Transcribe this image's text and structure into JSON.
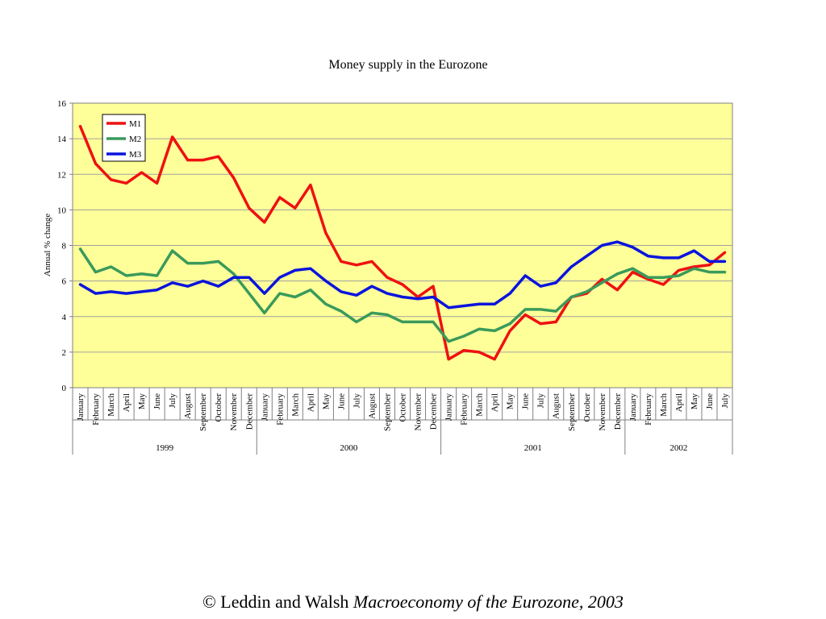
{
  "chart_data": {
    "type": "line",
    "title": "Money supply in the Eurozone",
    "ylabel": "Annual % change",
    "xlabel": "",
    "ylim": [
      0,
      16
    ],
    "yticks": [
      0,
      2,
      4,
      6,
      8,
      10,
      12,
      14,
      16
    ],
    "grid": true,
    "legend_position": "top-left",
    "plot_background": "#ffff99",
    "years": [
      {
        "label": "1999",
        "months": [
          "January",
          "February",
          "March",
          "April",
          "May",
          "June",
          "July",
          "August",
          "September",
          "October",
          "November",
          "December"
        ]
      },
      {
        "label": "2000",
        "months": [
          "January",
          "February",
          "March",
          "April",
          "May",
          "June",
          "July",
          "August",
          "September",
          "October",
          "November",
          "December"
        ]
      },
      {
        "label": "2001",
        "months": [
          "January",
          "February",
          "March",
          "April",
          "May",
          "June",
          "July",
          "August",
          "September",
          "October",
          "November",
          "December"
        ]
      },
      {
        "label": "2002",
        "months": [
          "January",
          "February",
          "March",
          "April",
          "May",
          "June",
          "July"
        ]
      }
    ],
    "series": [
      {
        "name": "M1",
        "color": "#ee1111",
        "values": [
          14.7,
          12.6,
          11.7,
          11.5,
          12.1,
          11.5,
          14.1,
          12.8,
          12.8,
          13.0,
          11.8,
          10.1,
          9.3,
          10.7,
          10.1,
          11.4,
          8.7,
          7.1,
          6.9,
          7.1,
          6.2,
          5.8,
          5.1,
          5.7,
          1.6,
          2.1,
          2.0,
          1.6,
          3.2,
          4.1,
          3.6,
          3.7,
          5.1,
          5.3,
          6.1,
          5.5,
          6.5,
          6.1,
          5.8,
          6.6,
          6.8,
          6.9,
          7.6
        ]
      },
      {
        "name": "M2",
        "color": "#3a9a5b",
        "values": [
          7.8,
          6.5,
          6.8,
          6.3,
          6.4,
          6.3,
          7.7,
          7.0,
          7.0,
          7.1,
          6.4,
          5.3,
          4.2,
          5.3,
          5.1,
          5.5,
          4.7,
          4.3,
          3.7,
          4.2,
          4.1,
          3.7,
          3.7,
          3.7,
          2.6,
          2.9,
          3.3,
          3.2,
          3.6,
          4.4,
          4.4,
          4.3,
          5.1,
          5.4,
          5.9,
          6.4,
          6.7,
          6.2,
          6.2,
          6.3,
          6.7,
          6.5,
          6.5
        ]
      },
      {
        "name": "M3",
        "color": "#0a14dd",
        "values": [
          5.8,
          5.3,
          5.4,
          5.3,
          5.4,
          5.5,
          5.9,
          5.7,
          6.0,
          5.7,
          6.2,
          6.2,
          5.3,
          6.2,
          6.6,
          6.7,
          6.0,
          5.4,
          5.2,
          5.7,
          5.3,
          5.1,
          5.0,
          5.1,
          4.5,
          4.6,
          4.7,
          4.7,
          5.3,
          6.3,
          5.7,
          5.9,
          6.8,
          7.4,
          8.0,
          8.2,
          7.9,
          7.4,
          7.3,
          7.3,
          7.7,
          7.1,
          7.1
        ]
      }
    ]
  },
  "footer": {
    "copyright": "© Leddin and Walsh ",
    "book": "Macroeconomy of the Eurozone, 2003"
  }
}
